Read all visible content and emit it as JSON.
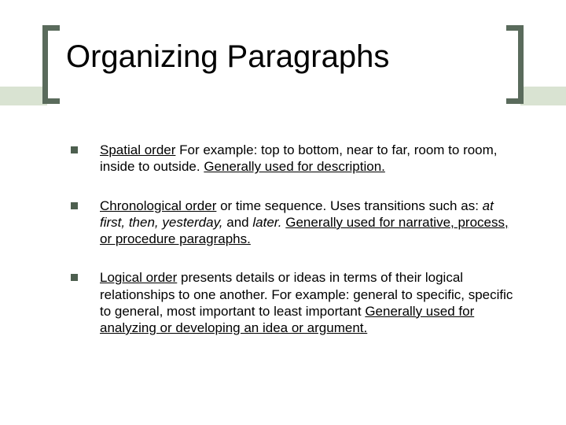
{
  "colors": {
    "bracket": "#5a6b5c",
    "band": "#d9e3d2",
    "bullet": "#4d5f4f",
    "text": "#000000",
    "background": "#ffffff"
  },
  "title": "Organizing Paragraphs",
  "title_fontsize": 40,
  "body_fontsize": 17,
  "bullets": [
    {
      "lead": "Spatial order",
      "rest1": " For example: top to bottom, near to far, room to room, inside to outside.  ",
      "tail": "Generally used for description.",
      "italic": ""
    },
    {
      "lead": "Chronological order",
      "rest1": " or time sequence.  Uses transitions such as: ",
      "italic": "at first, then, yesterday, ",
      "rest2": "and ",
      "italic2": "later.  ",
      "tail": "Generally used for narrative, process, or procedure paragraphs."
    },
    {
      "lead": "Logical order",
      "rest1": " presents details or ideas in terms of their logical relationships to one another.  For example: general to specific, specific to general, most important to least important  ",
      "tail": "Generally used for analyzing or developing an idea or argument.",
      "italic": ""
    }
  ]
}
